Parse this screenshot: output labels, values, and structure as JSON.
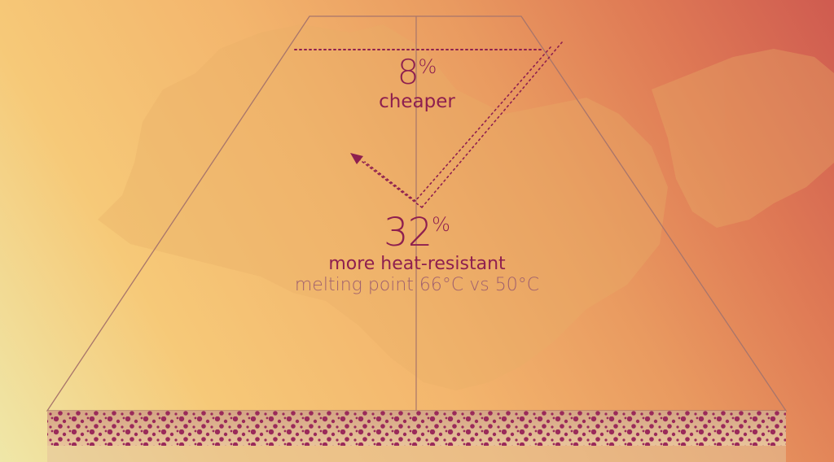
{
  "stat_price": {
    "value": "8",
    "unit": "%",
    "label": "cheaper"
  },
  "stat_heat": {
    "value": "32",
    "unit": "%",
    "label": "more heat-resistant",
    "detail": "melting point 66°C vs 50°C"
  },
  "colors": {
    "accent": "#8e1f4f",
    "outline": "#a8756b",
    "dots": "#9a2a5a",
    "band": "#d4a584",
    "detail_text": "#a0606e"
  }
}
